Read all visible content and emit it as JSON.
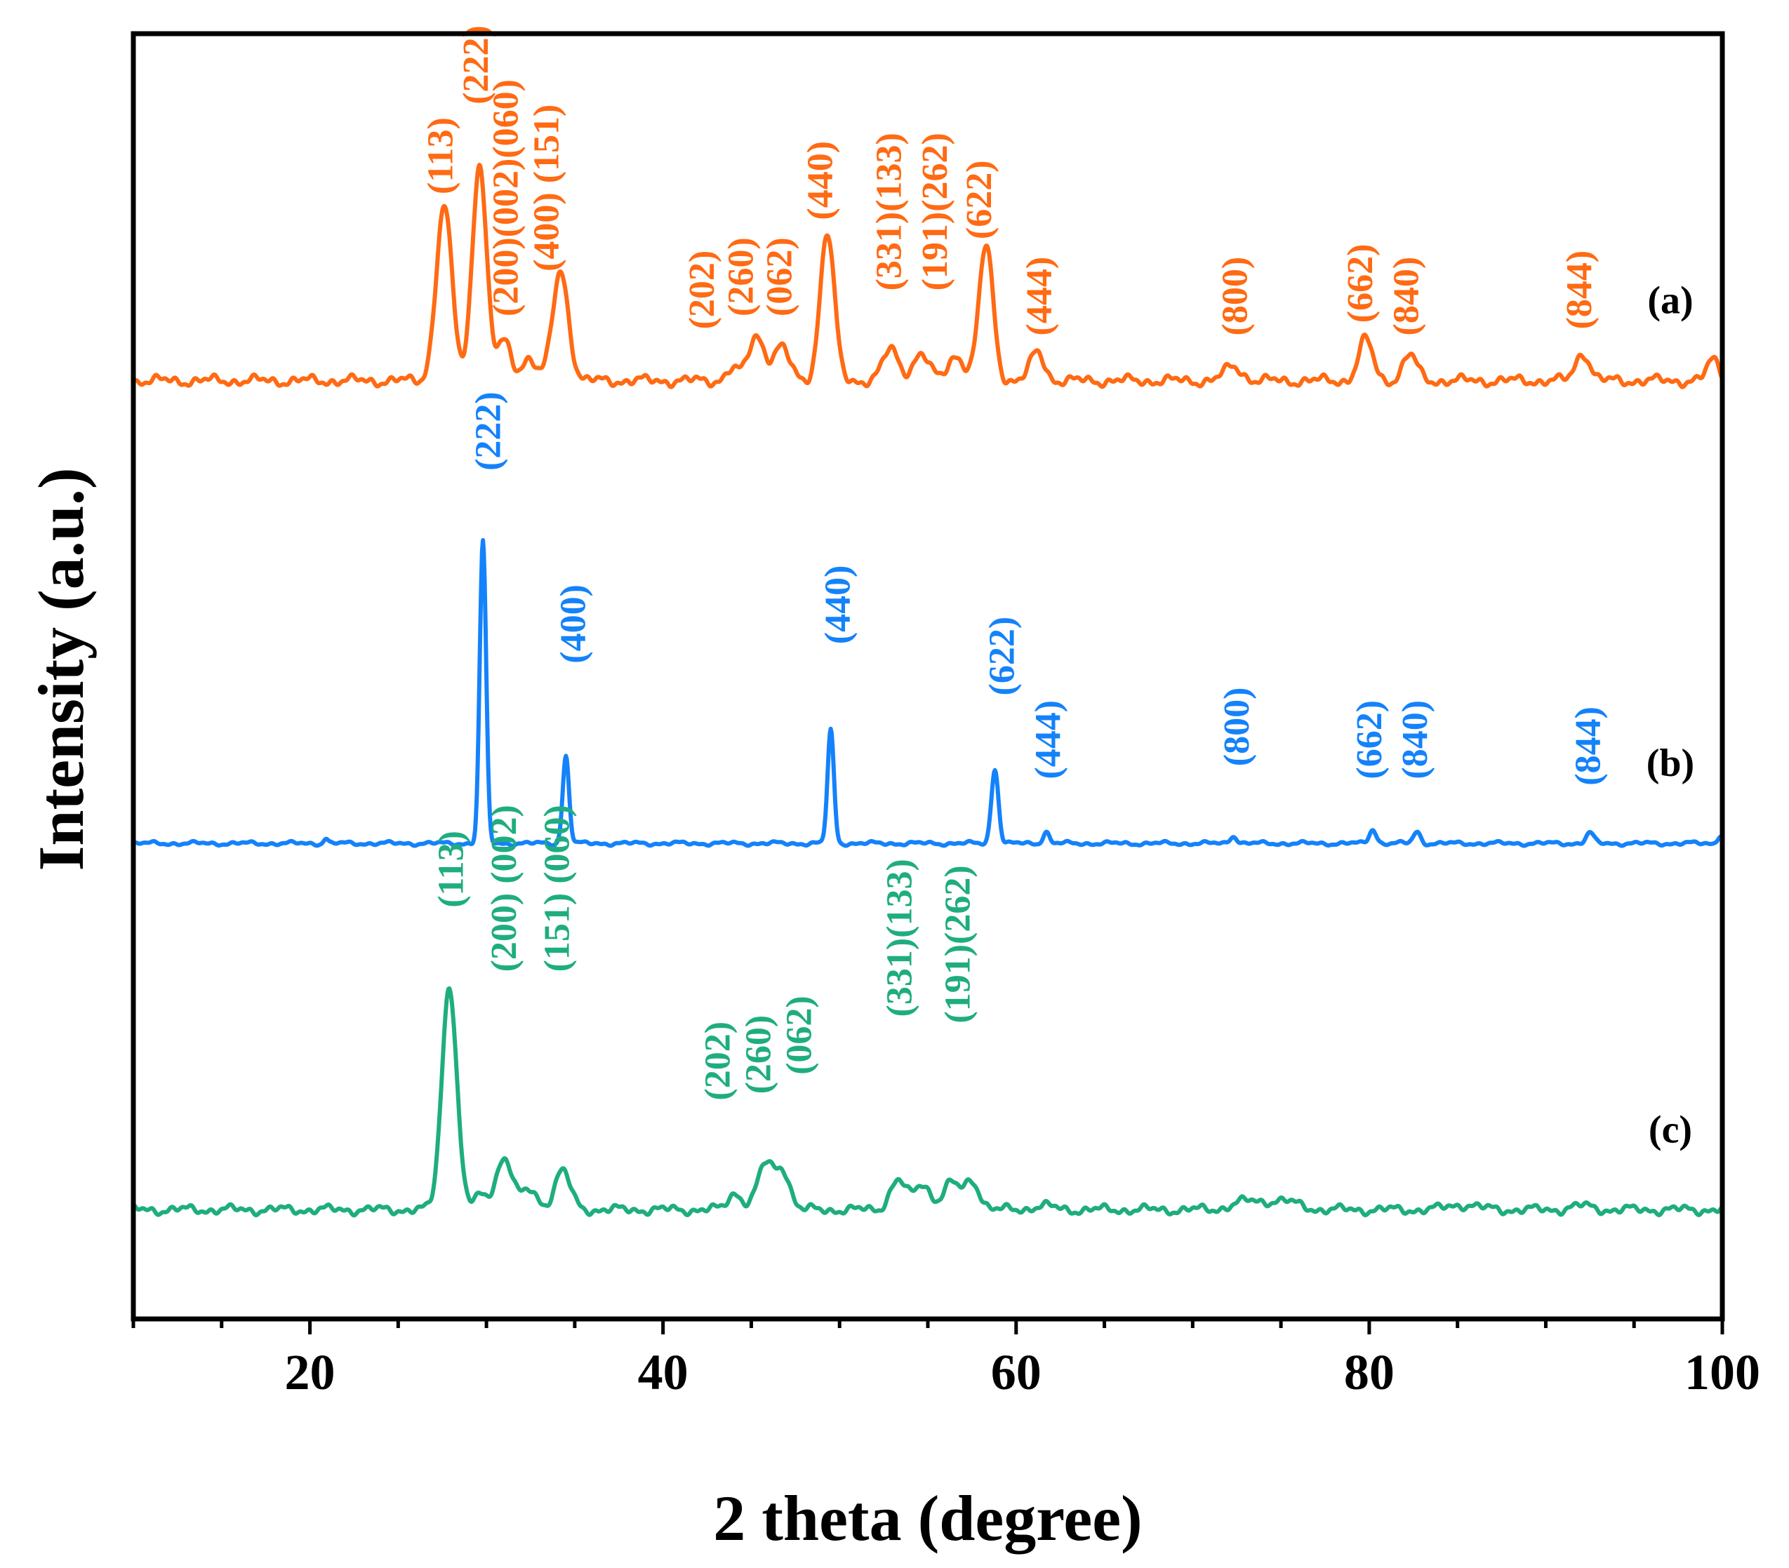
{
  "chart_data": {
    "type": "line",
    "title": "",
    "xlabel": "2 theta (degree)",
    "ylabel": "Intensity (a.u.)",
    "xlim": [
      10,
      100
    ],
    "ylim": [
      0,
      100
    ],
    "x_ticks": [
      20,
      40,
      60,
      80,
      100
    ],
    "x_tick_labels": [
      "20",
      "40",
      "60",
      "80",
      "100"
    ],
    "grid": false,
    "legend": "none",
    "series": [
      {
        "name": "(a)",
        "label": "(a)",
        "color": "#FF6A13",
        "baseline": 73,
        "noise": 0.4,
        "peaks": [
          {
            "x": 27.6,
            "h": 13.5,
            "w": 0.45
          },
          {
            "x": 29.6,
            "h": 17.0,
            "w": 0.4
          },
          {
            "x": 31.0,
            "h": 3.0,
            "w": 0.4
          },
          {
            "x": 32.4,
            "h": 1.8,
            "w": 0.4
          },
          {
            "x": 34.2,
            "h": 8.5,
            "w": 0.45
          },
          {
            "x": 43.9,
            "h": 0.9,
            "w": 0.35
          },
          {
            "x": 45.3,
            "h": 3.5,
            "w": 0.45
          },
          {
            "x": 46.7,
            "h": 2.6,
            "w": 0.45
          },
          {
            "x": 49.3,
            "h": 11.5,
            "w": 0.4
          },
          {
            "x": 52.9,
            "h": 2.4,
            "w": 0.45
          },
          {
            "x": 54.6,
            "h": 2.1,
            "w": 0.45
          },
          {
            "x": 56.6,
            "h": 2.0,
            "w": 0.45
          },
          {
            "x": 58.3,
            "h": 10.5,
            "w": 0.4
          },
          {
            "x": 61.2,
            "h": 2.2,
            "w": 0.4
          },
          {
            "x": 72.3,
            "h": 1.1,
            "w": 0.5
          },
          {
            "x": 79.8,
            "h": 3.2,
            "w": 0.4
          },
          {
            "x": 82.3,
            "h": 2.0,
            "w": 0.4
          },
          {
            "x": 92.1,
            "h": 2.2,
            "w": 0.4
          },
          {
            "x": 99.5,
            "h": 1.6,
            "w": 0.35
          }
        ],
        "annotations": [
          {
            "text": "(113)",
            "x": 27.6,
            "y": 87.5
          },
          {
            "text": "(222)",
            "x": 29.6,
            "y": 94.5
          },
          {
            "text": "(200)(002)(060)",
            "x": 31.3,
            "y": 78
          },
          {
            "text": "(400) (151)",
            "x": 33.6,
            "y": 81.5
          },
          {
            "text": "(202)",
            "x": 42.4,
            "y": 77
          },
          {
            "text": "(260)",
            "x": 44.6,
            "y": 78
          },
          {
            "text": "(062)",
            "x": 46.8,
            "y": 78
          },
          {
            "text": "(440)",
            "x": 49.1,
            "y": 85.5
          },
          {
            "text": "(331)(133)",
            "x": 53.0,
            "y": 80
          },
          {
            "text": "(191)(262)",
            "x": 55.6,
            "y": 80
          },
          {
            "text": "(622)",
            "x": 58.1,
            "y": 84
          },
          {
            "text": "(444)",
            "x": 61.5,
            "y": 76.5
          },
          {
            "text": "(800)",
            "x": 72.6,
            "y": 76.5
          },
          {
            "text": "(662)",
            "x": 79.7,
            "y": 77.5
          },
          {
            "text": "(840)",
            "x": 82.3,
            "y": 76.5
          },
          {
            "text": "(844)",
            "x": 92.1,
            "y": 77
          }
        ]
      },
      {
        "name": "(b)",
        "label": "(b)",
        "color": "#1482FA",
        "baseline": 37,
        "noise": 0.15,
        "peaks": [
          {
            "x": 20.9,
            "h": 0.4,
            "w": 0.12
          },
          {
            "x": 29.8,
            "h": 23.5,
            "w": 0.18
          },
          {
            "x": 34.5,
            "h": 6.8,
            "w": 0.18
          },
          {
            "x": 49.5,
            "h": 8.8,
            "w": 0.18
          },
          {
            "x": 58.8,
            "h": 5.8,
            "w": 0.2
          },
          {
            "x": 61.7,
            "h": 0.9,
            "w": 0.18
          },
          {
            "x": 72.3,
            "h": 0.6,
            "w": 0.2
          },
          {
            "x": 80.2,
            "h": 1.1,
            "w": 0.2
          },
          {
            "x": 82.7,
            "h": 0.9,
            "w": 0.2
          },
          {
            "x": 92.5,
            "h": 0.8,
            "w": 0.22
          },
          {
            "x": 99.9,
            "h": 0.7,
            "w": 0.15
          }
        ],
        "annotations": [
          {
            "text": "(222)",
            "x": 30.3,
            "y": 66
          },
          {
            "text": "(400)",
            "x": 35.1,
            "y": 51
          },
          {
            "text": "(440)",
            "x": 50.1,
            "y": 52.5
          },
          {
            "text": "(622)",
            "x": 59.4,
            "y": 48.5
          },
          {
            "text": "(444)",
            "x": 62.0,
            "y": 42
          },
          {
            "text": "(800)",
            "x": 72.7,
            "y": 43
          },
          {
            "text": "(662)",
            "x": 80.2,
            "y": 42
          },
          {
            "text": "(840)",
            "x": 82.8,
            "y": 42
          },
          {
            "text": "(844)",
            "x": 92.6,
            "y": 41.5
          }
        ]
      },
      {
        "name": "(c)",
        "label": "(c)",
        "color": "#1FAD80",
        "baseline": 8.5,
        "noise": 0.35,
        "peaks": [
          {
            "x": 27.9,
            "h": 17.5,
            "w": 0.42
          },
          {
            "x": 29.6,
            "h": 1.0,
            "w": 0.35
          },
          {
            "x": 31.0,
            "h": 4.0,
            "w": 0.5
          },
          {
            "x": 32.5,
            "h": 1.5,
            "w": 0.4
          },
          {
            "x": 34.3,
            "h": 3.0,
            "w": 0.45
          },
          {
            "x": 44.1,
            "h": 1.3,
            "w": 0.4
          },
          {
            "x": 45.8,
            "h": 3.5,
            "w": 0.45
          },
          {
            "x": 46.8,
            "h": 3.0,
            "w": 0.4
          },
          {
            "x": 53.3,
            "h": 2.3,
            "w": 0.45
          },
          {
            "x": 54.7,
            "h": 2.0,
            "w": 0.45
          },
          {
            "x": 56.3,
            "h": 2.0,
            "w": 0.45
          },
          {
            "x": 57.5,
            "h": 2.2,
            "w": 0.45
          },
          {
            "x": 61.5,
            "h": 0.3,
            "w": 0.6
          },
          {
            "x": 73.0,
            "h": 0.6,
            "w": 0.8
          },
          {
            "x": 75.0,
            "h": 0.7,
            "w": 0.9
          },
          {
            "x": 85.3,
            "h": 0.4,
            "w": 0.8
          },
          {
            "x": 92.0,
            "h": 0.3,
            "w": 0.6
          }
        ],
        "annotations": [
          {
            "text": "(113)",
            "x": 28.2,
            "y": 32
          },
          {
            "text": "(200) (002)",
            "x": 31.2,
            "y": 27
          },
          {
            "text": "(151) (060)",
            "x": 34.2,
            "y": 27
          },
          {
            "text": "(202)",
            "x": 43.3,
            "y": 17
          },
          {
            "text": "(260)",
            "x": 45.6,
            "y": 17.5
          },
          {
            "text": "(062)",
            "x": 47.9,
            "y": 19
          },
          {
            "text": "(331)(133)",
            "x": 53.6,
            "y": 23.5
          },
          {
            "text": "(191)(262)",
            "x": 56.9,
            "y": 23
          }
        ]
      }
    ]
  }
}
